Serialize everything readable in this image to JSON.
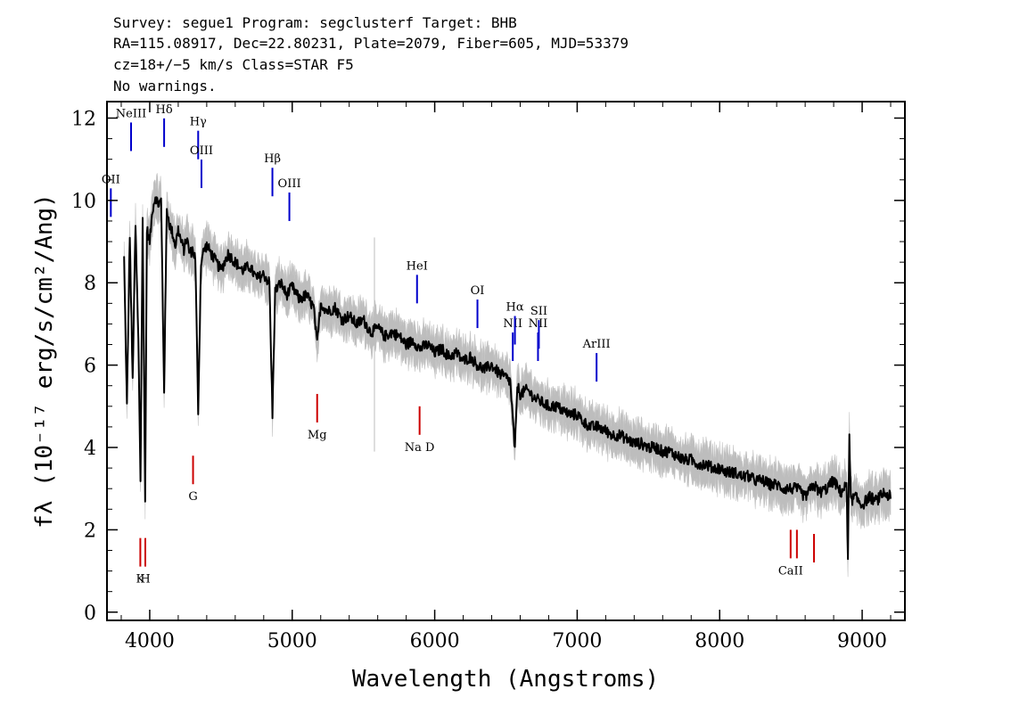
{
  "header": {
    "line1": "Survey: segue1 Program: segclusterf Target: BHB",
    "line2": "RA=115.08917, Dec=22.80231, Plate=2079, Fiber=605, MJD=53379",
    "line3": "cz=18+/−5 km/s Class=STAR F5",
    "line4": "No warnings."
  },
  "chart_data": {
    "type": "line",
    "xlabel": "Wavelength (Angstroms)",
    "ylabel": "fλ (10⁻¹⁷ erg/s/cm²/Ang)",
    "xlim": [
      3700,
      9300
    ],
    "ylim": [
      -0.2,
      12.4
    ],
    "x_ticks": [
      4000,
      5000,
      6000,
      7000,
      8000,
      9000
    ],
    "y_ticks": [
      0,
      2,
      4,
      6,
      8,
      10,
      12
    ],
    "grid": false,
    "series": [
      {
        "color": "#000000",
        "x": [
          3820,
          3840,
          3860,
          3880,
          3900,
          3920,
          3935,
          3950,
          3968,
          3980,
          4000,
          4020,
          4040,
          4060,
          4080,
          4101,
          4120,
          4140,
          4160,
          4180,
          4200,
          4220,
          4240,
          4260,
          4280,
          4300,
          4320,
          4340,
          4360,
          4380,
          4400,
          4450,
          4500,
          4550,
          4600,
          4650,
          4700,
          4750,
          4800,
          4840,
          4861,
          4880,
          4920,
          4960,
          5000,
          5050,
          5100,
          5150,
          5175,
          5200,
          5250,
          5300,
          5350,
          5400,
          5450,
          5500,
          5550,
          5600,
          5650,
          5700,
          5750,
          5800,
          5850,
          5893,
          5950,
          6000,
          6050,
          6100,
          6150,
          6200,
          6250,
          6300,
          6350,
          6400,
          6450,
          6500,
          6530,
          6563,
          6580,
          6600,
          6650,
          6700,
          6750,
          6800,
          6850,
          6900,
          6950,
          7000,
          7050,
          7100,
          7150,
          7200,
          7250,
          7300,
          7350,
          7400,
          7450,
          7500,
          7550,
          7600,
          7650,
          7700,
          7750,
          7800,
          7850,
          7900,
          7950,
          8000,
          8050,
          8100,
          8150,
          8200,
          8250,
          8300,
          8350,
          8400,
          8450,
          8498,
          8542,
          8600,
          8662,
          8700,
          8750,
          8800,
          8850,
          8890,
          8900,
          8910,
          8920,
          8950,
          9000,
          9050,
          9100,
          9150,
          9200
        ],
        "values": [
          8.6,
          5.0,
          9.2,
          5.6,
          9.4,
          6.6,
          3.2,
          9.6,
          2.7,
          9.3,
          9.0,
          9.8,
          10.1,
          9.9,
          10.0,
          5.4,
          9.8,
          9.4,
          9.2,
          8.9,
          9.3,
          9.0,
          8.8,
          9.1,
          8.7,
          8.8,
          8.6,
          4.9,
          8.5,
          8.8,
          8.9,
          8.6,
          8.3,
          8.7,
          8.5,
          8.3,
          8.4,
          8.1,
          8.2,
          8.0,
          4.8,
          7.8,
          8.0,
          7.7,
          7.9,
          7.6,
          7.7,
          7.4,
          6.5,
          7.5,
          7.3,
          7.4,
          7.1,
          7.2,
          7.0,
          7.1,
          6.8,
          6.9,
          6.7,
          6.8,
          6.7,
          6.5,
          6.6,
          6.4,
          6.5,
          6.3,
          6.4,
          6.2,
          6.3,
          6.1,
          6.2,
          6.0,
          5.9,
          6.0,
          5.8,
          5.7,
          5.6,
          3.9,
          5.5,
          5.3,
          5.4,
          5.2,
          5.1,
          5.0,
          5.0,
          4.9,
          4.8,
          4.8,
          4.6,
          4.5,
          4.5,
          4.4,
          4.3,
          4.3,
          4.2,
          4.1,
          4.1,
          4.0,
          4.0,
          3.9,
          3.9,
          3.8,
          3.7,
          3.7,
          3.6,
          3.6,
          3.5,
          3.5,
          3.4,
          3.4,
          3.3,
          3.3,
          3.2,
          3.2,
          3.1,
          3.1,
          3.0,
          3.0,
          3.0,
          2.8,
          3.1,
          2.9,
          3.0,
          3.2,
          2.9,
          3.1,
          1.3,
          4.4,
          2.7,
          2.8,
          2.6,
          2.8,
          2.7,
          2.9,
          2.8
        ]
      }
    ],
    "emission_lines": [
      {
        "label": "OII",
        "x": 3727,
        "y": 9.6,
        "color": "#0000cc"
      },
      {
        "label": "NeIII",
        "x": 3869,
        "y": 11.2,
        "color": "#0000cc"
      },
      {
        "label": "Hδ",
        "x": 4101,
        "y": 11.3,
        "color": "#0000cc"
      },
      {
        "label": "Hγ",
        "x": 4340,
        "y": 11.0,
        "color": "#0000cc"
      },
      {
        "label": "OIII",
        "x": 4363,
        "y": 10.3,
        "color": "#0000cc"
      },
      {
        "label": "Hβ",
        "x": 4861,
        "y": 10.1,
        "color": "#0000cc"
      },
      {
        "label": "OIII",
        "x": 4980,
        "y": 9.5,
        "color": "#0000cc"
      },
      {
        "label": "HeI",
        "x": 5876,
        "y": 7.5,
        "color": "#0000cc"
      },
      {
        "label": "OI",
        "x": 6300,
        "y": 6.9,
        "color": "#0000cc"
      },
      {
        "label": "NII",
        "x": 6548,
        "y": 6.1,
        "color": "#0000cc"
      },
      {
        "label": "Hα",
        "x": 6563,
        "y": 6.5,
        "color": "#0000cc"
      },
      {
        "label": "NII",
        "x": 6725,
        "y": 6.1,
        "color": "#0000cc"
      },
      {
        "label": "SII",
        "x": 6731,
        "y": 6.4,
        "color": "#0000cc"
      },
      {
        "label": "ArIII",
        "x": 7136,
        "y": 5.6,
        "color": "#0000cc"
      }
    ],
    "absorption_lines": [
      {
        "label": "K",
        "x": 3934,
        "y": 1.8,
        "color": "#cc0000"
      },
      {
        "label": "H",
        "x": 3969,
        "y": 1.8,
        "color": "#cc0000"
      },
      {
        "label": "G",
        "x": 4304,
        "y": 3.8,
        "color": "#cc0000"
      },
      {
        "label": "Mg",
        "x": 5175,
        "y": 5.3,
        "color": "#cc0000"
      },
      {
        "label": "Na D",
        "x": 5894,
        "y": 5.0,
        "color": "#cc0000"
      },
      {
        "label": "CaII",
        "x": 8498,
        "y": 2.0,
        "color": "#cc0000"
      },
      {
        "label": "",
        "x": 8542,
        "y": 2.0,
        "color": "#cc0000"
      },
      {
        "label": "",
        "x": 8662,
        "y": 1.9,
        "color": "#cc0000"
      }
    ]
  }
}
